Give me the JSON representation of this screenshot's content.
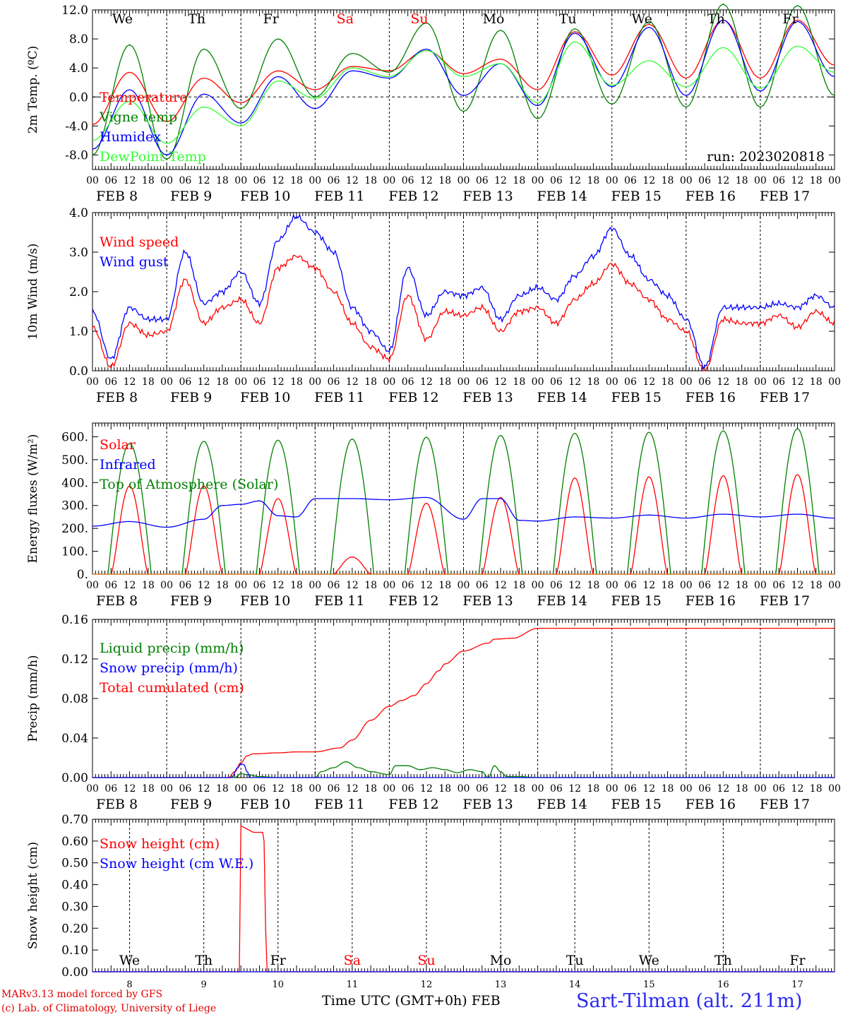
{
  "chart_data": [
    {
      "type": "line",
      "ylabel": "2m Temp. (ºC)",
      "ylim": [
        -10,
        12
      ],
      "yticks": [
        "12.0",
        "8.0",
        "4.0",
        "0.0",
        "-4.0",
        "-8.0"
      ],
      "ytick_values": [
        12,
        8,
        4,
        0,
        -4,
        -8
      ],
      "zero_line": true,
      "annotation": "run: 2023020818",
      "legend": [
        {
          "name": "Temperature",
          "color": "#ff0000"
        },
        {
          "name": "Vigne temp",
          "color": "#008000"
        },
        {
          "name": "Humidex",
          "color": "#0000ff"
        },
        {
          "name": "DewPoint Temp",
          "color": "#33ff33"
        }
      ],
      "day_labels": [
        "We",
        "Th",
        "Fr",
        "Sa",
        "Su",
        "Mo",
        "Tu",
        "We",
        "Th",
        "Fr"
      ],
      "day_label_colors": [
        "#000000",
        "#000000",
        "#000000",
        "#ff0000",
        "#ff0000",
        "#000000",
        "#000000",
        "#000000",
        "#000000",
        "#000000"
      ],
      "x": [
        0,
        12,
        24,
        36,
        48,
        60,
        72,
        84,
        96,
        108,
        120,
        132,
        144,
        156,
        168,
        180,
        192,
        204,
        216,
        228,
        240
      ],
      "series": [
        {
          "name": "Temperature",
          "color": "#ff0000",
          "values": [
            -3.8,
            3.4,
            -3.4,
            2.6,
            -0.8,
            3.6,
            1.0,
            4.2,
            3.6,
            6.4,
            3.2,
            5.2,
            1.0,
            9.0,
            3.0,
            10.0,
            2.6,
            10.6,
            2.6,
            10.6,
            4.4
          ]
        },
        {
          "name": "Vigne temp",
          "color": "#008000",
          "values": [
            -8.0,
            7.2,
            -8.6,
            6.6,
            -1.6,
            8.0,
            0.0,
            6.0,
            3.4,
            10.2,
            -2.0,
            9.2,
            -3.0,
            9.4,
            -1.0,
            10.4,
            -1.4,
            12.8,
            -1.4,
            12.6,
            0.2
          ]
        },
        {
          "name": "Humidex",
          "color": "#0000ff",
          "values": [
            -7.2,
            1.0,
            -8.0,
            0.4,
            -3.6,
            2.8,
            -1.6,
            3.6,
            2.6,
            6.6,
            0.2,
            4.6,
            -1.2,
            8.8,
            1.4,
            9.6,
            0.2,
            10.6,
            0.8,
            10.4,
            2.8
          ]
        },
        {
          "name": "DewPoint Temp",
          "color": "#33ff33",
          "values": [
            -6.0,
            -0.6,
            -6.4,
            -1.4,
            -4.0,
            2.2,
            -0.2,
            4.0,
            2.8,
            6.4,
            2.8,
            4.6,
            -0.8,
            7.6,
            1.6,
            5.0,
            1.4,
            6.8,
            1.2,
            7.0,
            3.4
          ]
        }
      ]
    },
    {
      "type": "line",
      "ylabel": "10m Wind (m/s)",
      "ylim": [
        0,
        4
      ],
      "yticks": [
        "4.0",
        "3.0",
        "2.0",
        "1.0",
        "0.0"
      ],
      "ytick_values": [
        4,
        3,
        2,
        1,
        0
      ],
      "legend": [
        {
          "name": "Wind speed",
          "color": "#ff0000"
        },
        {
          "name": "Wind gust",
          "color": "#0000ff"
        }
      ],
      "x": [
        0,
        6,
        12,
        18,
        24,
        30,
        36,
        42,
        48,
        54,
        60,
        66,
        72,
        78,
        84,
        90,
        96,
        102,
        108,
        114,
        120,
        126,
        132,
        138,
        144,
        150,
        156,
        162,
        168,
        174,
        180,
        186,
        192,
        198,
        204,
        210,
        216,
        222,
        228,
        234,
        240
      ],
      "series": [
        {
          "name": "Wind speed",
          "color": "#ff0000",
          "values": [
            1.1,
            0.1,
            1.2,
            0.9,
            1.0,
            2.3,
            1.2,
            1.6,
            1.8,
            1.2,
            2.6,
            2.9,
            2.6,
            2.0,
            1.2,
            0.6,
            0.3,
            1.9,
            0.8,
            1.5,
            1.4,
            1.6,
            1.0,
            1.5,
            1.6,
            1.2,
            1.8,
            2.2,
            2.7,
            2.2,
            1.8,
            1.3,
            1.0,
            0.0,
            1.3,
            1.2,
            1.2,
            1.4,
            1.1,
            1.5,
            1.2
          ]
        },
        {
          "name": "Wind gust",
          "color": "#0000ff",
          "values": [
            1.5,
            0.3,
            1.6,
            1.3,
            1.3,
            3.0,
            1.7,
            2.0,
            2.5,
            1.7,
            3.3,
            3.9,
            3.5,
            3.0,
            1.6,
            1.0,
            0.5,
            2.6,
            1.4,
            2.0,
            1.9,
            2.1,
            1.3,
            1.9,
            2.1,
            1.8,
            2.4,
            2.9,
            3.6,
            2.9,
            2.3,
            1.9,
            1.3,
            0.1,
            1.6,
            1.6,
            1.6,
            1.7,
            1.6,
            1.9,
            1.6
          ]
        }
      ]
    },
    {
      "type": "line",
      "ylabel": "Energy fluxes (W/m²)",
      "ylim": [
        0,
        660
      ],
      "yticks": [
        "600.",
        "500.",
        "400.",
        "300.",
        "200.",
        "100.",
        "0."
      ],
      "ytick_values": [
        600,
        500,
        400,
        300,
        200,
        100,
        0
      ],
      "legend": [
        {
          "name": "Solar",
          "color": "#ff0000"
        },
        {
          "name": "Infrared",
          "color": "#0000ff"
        },
        {
          "name": "Top of Atmosphere (Solar)",
          "color": "#008000"
        }
      ],
      "toa_peaks": [
        570,
        580,
        585,
        590,
        598,
        606,
        615,
        620,
        626,
        635
      ],
      "solar_peaks": [
        385,
        385,
        330,
        75,
        310,
        335,
        420,
        425,
        430,
        435
      ],
      "infrared": {
        "x": [
          0,
          12,
          24,
          36,
          42,
          48,
          54,
          60,
          66,
          72,
          84,
          96,
          108,
          120,
          126,
          132,
          138,
          144,
          156,
          168,
          180,
          192,
          204,
          216,
          228,
          240
        ],
        "values": [
          210,
          230,
          205,
          240,
          300,
          305,
          320,
          255,
          250,
          330,
          330,
          325,
          335,
          240,
          330,
          330,
          235,
          232,
          250,
          245,
          258,
          245,
          262,
          250,
          262,
          245
        ]
      }
    },
    {
      "type": "line",
      "ylabel": "Precip (mm/h)",
      "ylim": [
        0,
        0.16
      ],
      "yticks": [
        "0.16",
        "0.12",
        "0.08",
        "0.04",
        "0.00"
      ],
      "ytick_values": [
        0.16,
        0.12,
        0.08,
        0.04,
        0.0
      ],
      "legend": [
        {
          "name": "Liquid precip (mm/h)",
          "color": "#008000"
        },
        {
          "name": "Snow precip (mm/h)",
          "color": "#0000ff"
        },
        {
          "name": "Total cumulated (cm)",
          "color": "#ff0000"
        }
      ],
      "series": [
        {
          "name": "Total cumulated (cm)",
          "color": "#ff0000",
          "x": [
            0,
            44,
            46,
            48,
            50,
            52,
            60,
            66,
            72,
            80,
            84,
            90,
            96,
            100,
            104,
            108,
            112,
            114,
            120,
            128,
            130,
            136,
            144,
            240
          ],
          "values": [
            0,
            0,
            0.006,
            0.015,
            0.022,
            0.024,
            0.025,
            0.026,
            0.026,
            0.03,
            0.038,
            0.058,
            0.072,
            0.078,
            0.083,
            0.095,
            0.108,
            0.115,
            0.128,
            0.136,
            0.14,
            0.141,
            0.151,
            0.151
          ]
        },
        {
          "name": "Liquid precip (mm/h)",
          "color": "#008000",
          "x": [
            0,
            46,
            48,
            50,
            54,
            60,
            72,
            74,
            78,
            82,
            86,
            90,
            96,
            98,
            102,
            106,
            110,
            114,
            118,
            122,
            126,
            128,
            130,
            132,
            134,
            138,
            144,
            240
          ],
          "values": [
            0,
            0,
            0.004,
            0.003,
            0.001,
            0,
            0,
            0.006,
            0.01,
            0.016,
            0.01,
            0.006,
            0.003,
            0.012,
            0.012,
            0.008,
            0.01,
            0.008,
            0.005,
            0.008,
            0.006,
            0,
            0.012,
            0.006,
            0.001,
            0.001,
            0,
            0
          ]
        },
        {
          "name": "Snow precip (mm/h)",
          "color": "#0000ff",
          "x": [
            0,
            45,
            47,
            48,
            49,
            50,
            51,
            240
          ],
          "values": [
            0,
            0,
            0.01,
            0.014,
            0.013,
            0.006,
            0,
            0
          ]
        }
      ]
    },
    {
      "type": "line",
      "ylabel": "Snow height (cm)",
      "ylim": [
        0,
        0.7
      ],
      "yticks": [
        "0.70",
        "0.60",
        "0.50",
        "0.40",
        "0.30",
        "0.20",
        "0.10",
        "0.00"
      ],
      "ytick_values": [
        0.7,
        0.6,
        0.5,
        0.4,
        0.3,
        0.2,
        0.1,
        0.0
      ],
      "legend": [
        {
          "name": "Snow height (cm)",
          "color": "#ff0000"
        },
        {
          "name": "Snow height (cm W.E.)",
          "color": "#0000ff"
        }
      ],
      "day_labels": [
        "We",
        "Th",
        "Fr",
        "Sa",
        "Su",
        "Mo",
        "Tu",
        "We",
        "Th",
        "Fr"
      ],
      "day_label_colors": [
        "#000000",
        "#000000",
        "#000000",
        "#ff0000",
        "#ff0000",
        "#000000",
        "#000000",
        "#000000",
        "#000000",
        "#000000"
      ],
      "day_numbers": [
        "8",
        "9",
        "10",
        "11",
        "12",
        "13",
        "14",
        "15",
        "16",
        "17"
      ],
      "series": [
        {
          "name": "Snow height (cm)",
          "color": "#ff0000",
          "x": [
            0,
            47.5,
            48,
            52,
            55,
            55.5,
            56,
            56.5,
            240
          ],
          "values": [
            0,
            0,
            0.67,
            0.64,
            0.64,
            0.6,
            0.2,
            0,
            0
          ]
        },
        {
          "name": "Snow height (cm W.E.)",
          "color": "#0000ff",
          "x": [
            0,
            240
          ],
          "values": [
            0,
            0
          ]
        }
      ]
    }
  ],
  "time_axis": {
    "hour_labels": [
      "00",
      "06",
      "12",
      "18"
    ],
    "final_label": "00",
    "date_labels": [
      "FEB  8",
      "FEB  9",
      "FEB 10",
      "FEB 11",
      "FEB 12",
      "FEB 13",
      "FEB 14",
      "FEB 15",
      "FEB 16",
      "FEB 17"
    ]
  },
  "footer": {
    "credit_line1": "MARv3.13 model forced by GFS",
    "credit_line2": "(c) Lab. of Climatology, University of Liege",
    "xtitle": "Time UTC (GMT+0h) FEB",
    "station": "Sart-Tilman (alt. 211m)"
  }
}
